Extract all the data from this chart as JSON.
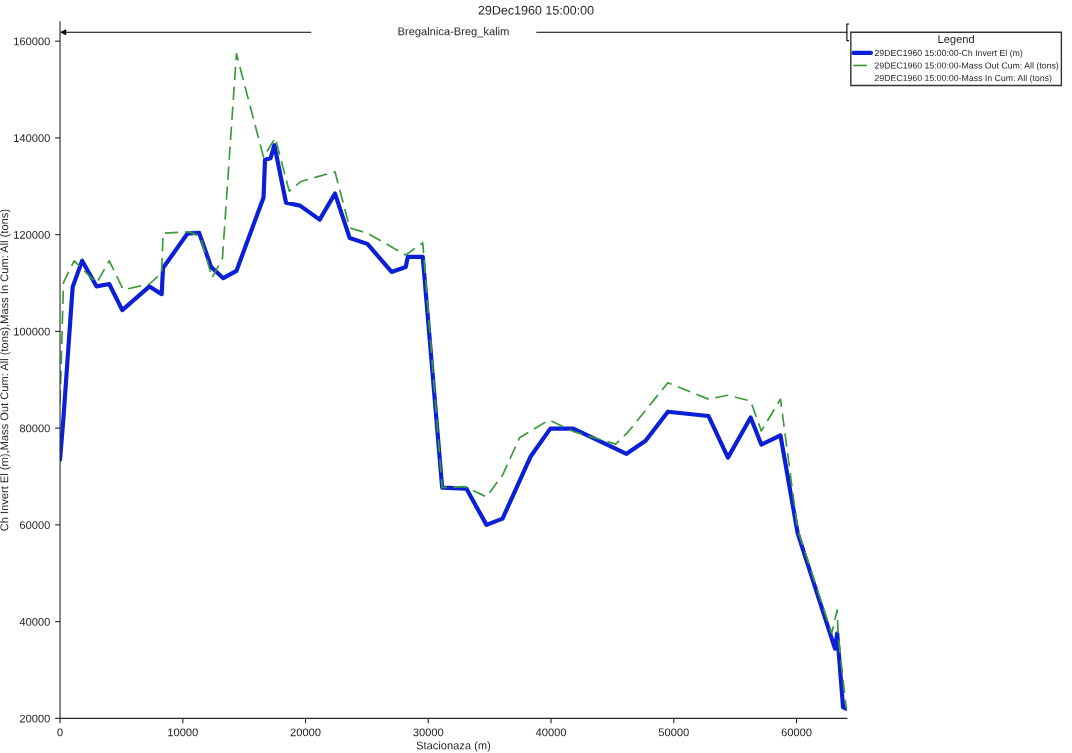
{
  "chart_data": {
    "type": "line",
    "title": "29Dec1960 15:00:00",
    "xlabel": "Stacionaza (m)",
    "ylabel": "Ch Invert El (m),Mass Out Cum: All (tons),Mass In Cum: All (tons)",
    "legend_title": "Legend",
    "annotations": [
      "Bregalnica-Breg_kalim",
      "29DEC1960 15:00:00-Mass In Cum: All (tons)"
    ],
    "series": [
      {
        "name": "29DEC1960 15:00:00-Ch Invert El (m)",
        "color": "#0a1fd6",
        "line_style": "solid",
        "x": [
          0,
          280,
          1030,
          1800,
          2980,
          4010,
          5070,
          7290,
          8280,
          8390,
          10370,
          11330,
          12310,
          13300,
          14370,
          16580,
          16700,
          17150,
          17460,
          18410,
          19550,
          21150,
          22400,
          23600,
          25040,
          27010,
          28160,
          28330,
          29550,
          31130,
          33100,
          34740,
          36050,
          38350,
          39940,
          41810,
          46150,
          47700,
          49520,
          52830,
          54410,
          56260,
          57130,
          58690,
          60090,
          63130,
          63310,
          63790,
          64050
        ],
        "values": [
          73500,
          82200,
          109200,
          114600,
          109300,
          109800,
          104400,
          109300,
          107700,
          113100,
          120200,
          120400,
          113300,
          111000,
          112500,
          127700,
          135500,
          135800,
          138500,
          126600,
          126000,
          123100,
          128500,
          119300,
          118100,
          112300,
          113300,
          115400,
          115400,
          67700,
          67500,
          60000,
          61300,
          74200,
          79900,
          79900,
          74700,
          77400,
          83400,
          82500,
          73900,
          82200,
          76600,
          78500,
          58300,
          34400,
          37600,
          22300,
          22000
        ]
      },
      {
        "name": "29DEC1960 15:00:00-Mass Out Cum: All (tons)",
        "color": "#3a9a3a",
        "line_style": "dashed",
        "x": [
          0,
          280,
          1150,
          2980,
          4010,
          5150,
          7290,
          8280,
          8390,
          10480,
          11430,
          12390,
          13230,
          14370,
          16580,
          17530,
          18670,
          19630,
          22400,
          23600,
          25040,
          28160,
          29550,
          31130,
          32930,
          34740,
          36050,
          37430,
          39840,
          41810,
          45260,
          46170,
          47800,
          49520,
          52830,
          54410,
          56260,
          57130,
          58690,
          60090,
          62860,
          63310,
          63390,
          64050
        ],
        "values": [
          85000,
          110100,
          114600,
          110000,
          114600,
          108600,
          109800,
          112100,
          120300,
          120600,
          119600,
          111100,
          115100,
          157400,
          136000,
          140000,
          129000,
          131000,
          133000,
          121400,
          120300,
          115800,
          118300,
          67700,
          67900,
          65800,
          70300,
          78000,
          81700,
          79300,
          76700,
          78900,
          84000,
          89400,
          86000,
          86800,
          85600,
          79400,
          86000,
          59000,
          37600,
          42400,
          37200,
          22000
        ]
      }
    ],
    "xlim": [
      0,
      64100
    ],
    "ylim": [
      20000,
      164000
    ],
    "xticks": [
      0,
      10000,
      20000,
      30000,
      40000,
      50000,
      60000
    ],
    "yticks": [
      20000,
      40000,
      60000,
      80000,
      100000,
      120000,
      140000,
      160000
    ],
    "grid": false,
    "legend": "top right",
    "marker": "none"
  }
}
